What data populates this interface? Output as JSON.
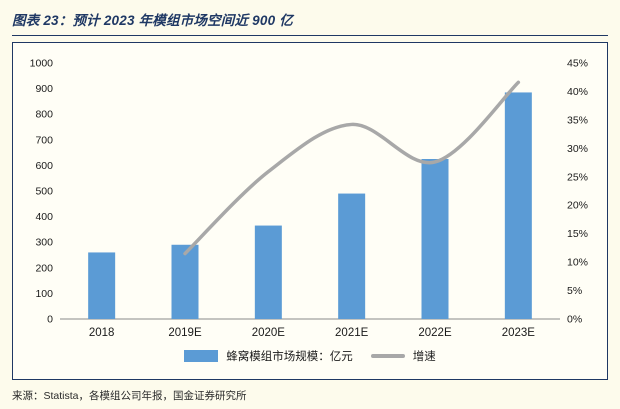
{
  "header": {
    "title": "图表 23：预计 2023 年模组市场空间近 900 亿"
  },
  "footer": {
    "source": "来源：Statista，各模组公司年报，国金证券研究所"
  },
  "colors": {
    "page_background": "#FDFBEC",
    "frame_background": "#FFFEF6",
    "frame_border": "#1F3864",
    "title_text": "#1F3864",
    "bar": "#5B9BD5",
    "line": "#A8A8A8",
    "axis_text": "#1a1a1a",
    "axis_line": "#8a8a8a"
  },
  "chart_data": {
    "type": "bar",
    "subtype": "bar-line-combo",
    "categories": [
      "2018",
      "2019E",
      "2020E",
      "2021E",
      "2022E",
      "2023E"
    ],
    "series": [
      {
        "name": "蜂窝模组市场规模：亿元",
        "type": "bar",
        "axis": "left",
        "values": [
          260,
          290,
          365,
          490,
          625,
          885
        ]
      },
      {
        "name": "增速",
        "type": "line",
        "axis": "right",
        "values": [
          null,
          11.5,
          25.9,
          34.2,
          27.6,
          41.6
        ]
      }
    ],
    "left_axis": {
      "min": 0,
      "max": 1000,
      "step": 100,
      "tick_labels": [
        "0",
        "100",
        "200",
        "300",
        "400",
        "500",
        "600",
        "700",
        "800",
        "900",
        "1000"
      ]
    },
    "right_axis": {
      "min": 0,
      "max": 45,
      "step": 5,
      "tick_labels": [
        "0%",
        "5%",
        "10%",
        "15%",
        "20%",
        "25%",
        "30%",
        "35%",
        "40%",
        "45%"
      ]
    },
    "grid": false,
    "legend_position": "bottom",
    "title": "图表 23：预计 2023 年模组市场空间近 900 亿",
    "xlabel": "",
    "ylabel_left": "亿元",
    "ylabel_right": "增速"
  }
}
